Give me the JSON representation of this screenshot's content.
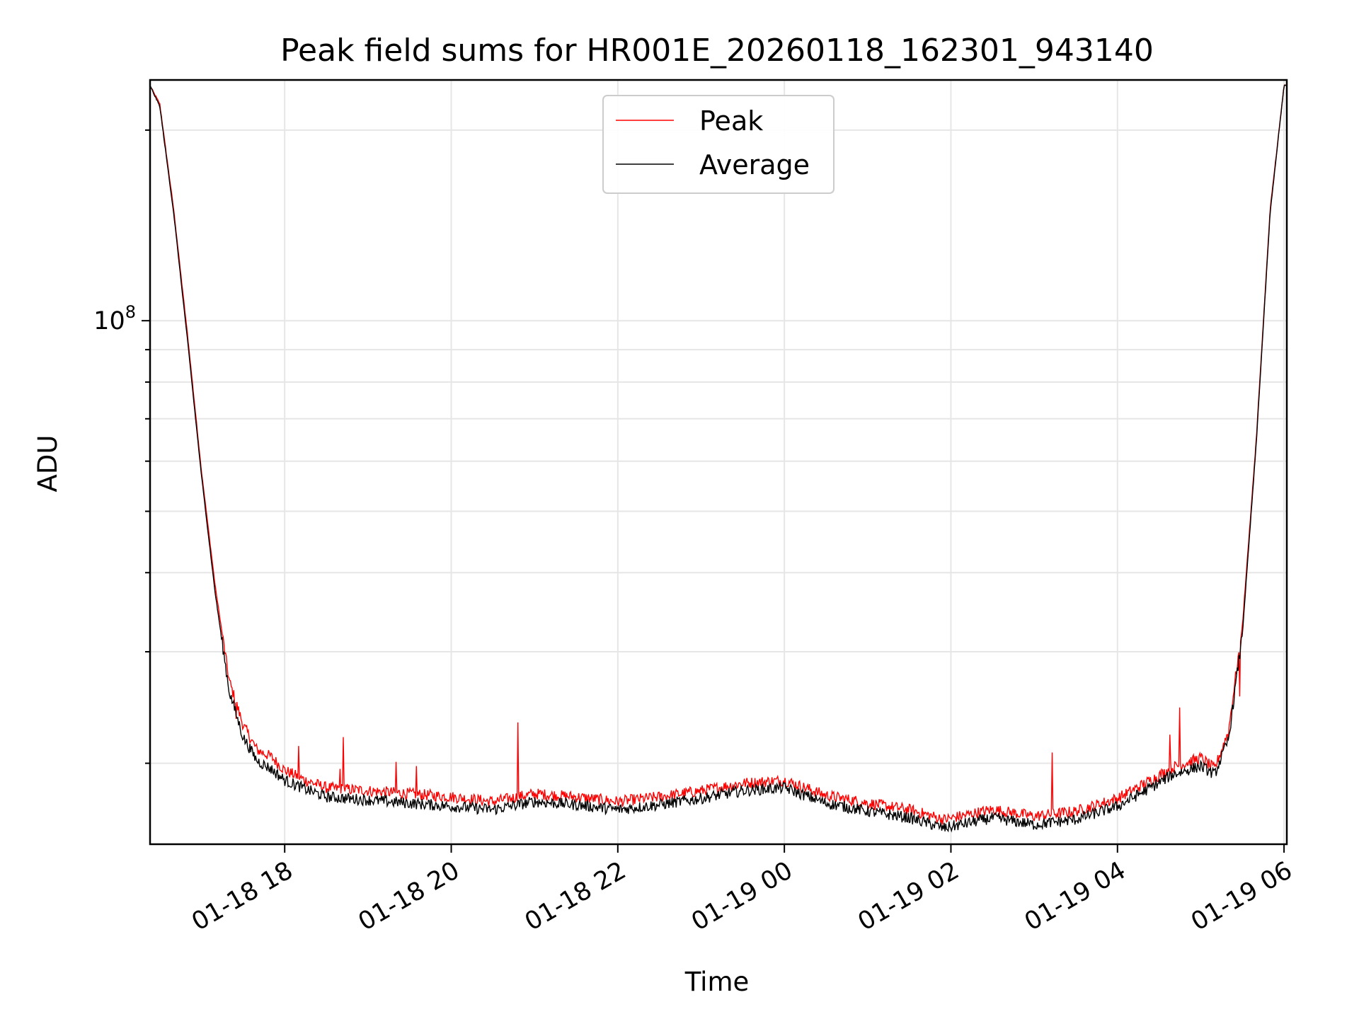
{
  "chart_data": {
    "type": "line",
    "title": "Peak field sums for HR001E_20260118_162301_943140",
    "xlabel": "Time",
    "ylabel": "ADU",
    "yscale": "log",
    "grid": true,
    "legend_position": "top-center",
    "xlim": [
      "2026-01-18 16:23",
      "2026-01-19 06:02"
    ],
    "ylim": [
      14900000,
      240000000
    ],
    "x_ticks": [
      "01-18 18",
      "01-18 20",
      "01-18 22",
      "01-19 00",
      "01-19 02",
      "01-19 04",
      "01-19 06"
    ],
    "y_ticks": [
      {
        "base": "10",
        "exp": "8",
        "value": 100000000
      }
    ],
    "y_minor_ticks": [
      20000000,
      30000000,
      40000000,
      50000000,
      60000000,
      70000000,
      80000000,
      90000000,
      200000000
    ],
    "series": [
      {
        "name": "Peak",
        "color": "#ff0000",
        "x": [
          "2026-01-18 16:23",
          "2026-01-18 16:30",
          "2026-01-18 16:40",
          "2026-01-18 16:50",
          "2026-01-18 17:00",
          "2026-01-18 17:10",
          "2026-01-18 17:20",
          "2026-01-18 17:30",
          "2026-01-18 17:40",
          "2026-01-18 17:50",
          "2026-01-18 18:00",
          "2026-01-18 18:15",
          "2026-01-18 18:30",
          "2026-01-18 19:00",
          "2026-01-18 19:30",
          "2026-01-18 20:00",
          "2026-01-18 20:30",
          "2026-01-18 21:00",
          "2026-01-18 21:30",
          "2026-01-18 22:00",
          "2026-01-18 22:30",
          "2026-01-18 23:00",
          "2026-01-18 23:30",
          "2026-01-19 00:00",
          "2026-01-19 00:30",
          "2026-01-19 01:00",
          "2026-01-19 01:30",
          "2026-01-19 01:55",
          "2026-01-19 02:30",
          "2026-01-19 03:00",
          "2026-01-19 03:30",
          "2026-01-19 04:00",
          "2026-01-19 04:20",
          "2026-01-19 04:40",
          "2026-01-19 05:00",
          "2026-01-19 05:10",
          "2026-01-19 05:20",
          "2026-01-19 05:30",
          "2026-01-19 05:40",
          "2026-01-19 05:50",
          "2026-01-19 06:00"
        ],
        "values": [
          235000000,
          220000000,
          150000000,
          95000000,
          58000000,
          38000000,
          27000000,
          23000000,
          21000000,
          20500000,
          19500000,
          18800000,
          18300000,
          18100000,
          17900000,
          17700000,
          17400000,
          17900000,
          17700000,
          17400000,
          17700000,
          18100000,
          18600000,
          18800000,
          17800000,
          17300000,
          16900000,
          16300000,
          16900000,
          16500000,
          16800000,
          17600000,
          18600000,
          19700000,
          20400000,
          19600000,
          22500000,
          33000000,
          65000000,
          150000000,
          235000000
        ],
        "spikes": [
          {
            "x": "2026-01-18 17:25",
            "y": 23500000
          },
          {
            "x": "2026-01-18 18:10",
            "y": 21300000
          },
          {
            "x": "2026-01-18 18:40",
            "y": 19600000
          },
          {
            "x": "2026-01-18 18:42",
            "y": 22000000
          },
          {
            "x": "2026-01-18 19:20",
            "y": 20100000
          },
          {
            "x": "2026-01-18 19:35",
            "y": 19800000
          },
          {
            "x": "2026-01-18 20:48",
            "y": 23200000
          },
          {
            "x": "2026-01-19 03:13",
            "y": 20800000
          },
          {
            "x": "2026-01-19 04:38",
            "y": 22200000
          },
          {
            "x": "2026-01-19 04:45",
            "y": 24500000
          },
          {
            "x": "2026-01-19 05:20",
            "y": 21800000
          },
          {
            "x": "2026-01-19 05:28",
            "y": 25500000
          }
        ]
      },
      {
        "name": "Average",
        "color": "#000000",
        "x": [
          "2026-01-18 16:23",
          "2026-01-18 16:30",
          "2026-01-18 16:40",
          "2026-01-18 16:50",
          "2026-01-18 17:00",
          "2026-01-18 17:10",
          "2026-01-18 17:20",
          "2026-01-18 17:30",
          "2026-01-18 17:40",
          "2026-01-18 17:50",
          "2026-01-18 18:00",
          "2026-01-18 18:15",
          "2026-01-18 18:30",
          "2026-01-18 19:00",
          "2026-01-18 19:30",
          "2026-01-18 20:00",
          "2026-01-18 20:30",
          "2026-01-18 21:00",
          "2026-01-18 21:30",
          "2026-01-18 22:00",
          "2026-01-18 22:30",
          "2026-01-18 23:00",
          "2026-01-18 23:30",
          "2026-01-19 00:00",
          "2026-01-19 00:30",
          "2026-01-19 01:00",
          "2026-01-19 01:30",
          "2026-01-19 01:55",
          "2026-01-19 02:30",
          "2026-01-19 03:00",
          "2026-01-19 03:30",
          "2026-01-19 04:00",
          "2026-01-19 04:20",
          "2026-01-19 04:40",
          "2026-01-19 05:00",
          "2026-01-19 05:10",
          "2026-01-19 05:20",
          "2026-01-19 05:30",
          "2026-01-19 05:40",
          "2026-01-19 05:50",
          "2026-01-19 06:00"
        ],
        "values": [
          235000000,
          218000000,
          148000000,
          93000000,
          57000000,
          37000000,
          26000000,
          22000000,
          20200000,
          19600000,
          18800000,
          18200000,
          17700000,
          17500000,
          17300000,
          17100000,
          16900000,
          17400000,
          17200000,
          16900000,
          17200000,
          17600000,
          18100000,
          18300000,
          17300000,
          16800000,
          16400000,
          15800000,
          16400000,
          16000000,
          16300000,
          17100000,
          18100000,
          19200000,
          19800000,
          19200000,
          21800000,
          32000000,
          64000000,
          148000000,
          235000000
        ]
      }
    ]
  }
}
